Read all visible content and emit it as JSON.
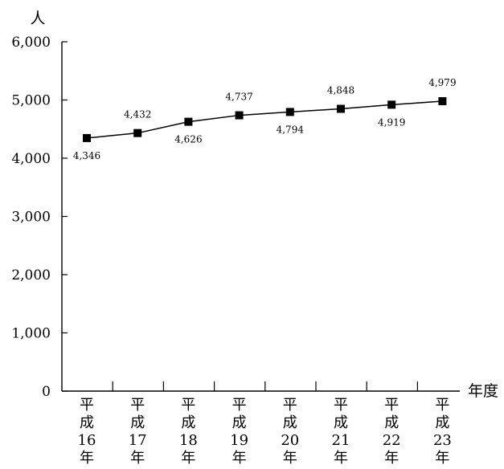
{
  "chart_data": {
    "type": "line",
    "categories": [
      [
        "平",
        "成",
        "16",
        "年"
      ],
      [
        "平",
        "成",
        "17",
        "年"
      ],
      [
        "平",
        "成",
        "18",
        "年"
      ],
      [
        "平",
        "成",
        "19",
        "年"
      ],
      [
        "平",
        "成",
        "20",
        "年"
      ],
      [
        "平",
        "成",
        "21",
        "年"
      ],
      [
        "平",
        "成",
        "22",
        "年"
      ],
      [
        "平",
        "成",
        "23",
        "年"
      ]
    ],
    "values": [
      4346,
      4432,
      4626,
      4737,
      4794,
      4848,
      4919,
      4979
    ],
    "data_labels": [
      "4,346",
      "4,432",
      "4,626",
      "4,737",
      "4,794",
      "4,848",
      "4,919",
      "4,979"
    ],
    "y_unit_label": "人",
    "x_unit_label": "年度",
    "ylim": [
      0,
      6000
    ],
    "yticks": [
      0,
      1000,
      2000,
      3000,
      4000,
      5000,
      6000
    ],
    "ytick_labels": [
      "0",
      "1,000",
      "2,000",
      "3,000",
      "4,000",
      "5,000",
      "6,000"
    ],
    "grid": false,
    "legend": "none",
    "colors": {
      "line": "#000000",
      "marker": "#000000",
      "axis": "#000000"
    }
  }
}
